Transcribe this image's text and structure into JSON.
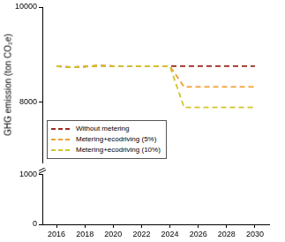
{
  "chart_data": [
    {
      "type": "line",
      "y_label": "GHG emission (ton CO₂e)",
      "x": [
        2016,
        2017,
        2018,
        2019,
        2020,
        2021,
        2022,
        2023,
        2024,
        2025,
        2026,
        2027,
        2028,
        2029,
        2030
      ],
      "xlim": [
        2015,
        2031
      ],
      "ylim": [
        6700,
        10000
      ],
      "yticks": [
        8000,
        10000
      ],
      "tick_labels": "y",
      "grid": false,
      "legend": "lower left",
      "series": [
        {
          "name": "Without metering",
          "color": "#9b2a1c",
          "line_style": "dashed",
          "values": [
            8750,
            8730,
            8740,
            8760,
            8750,
            8750,
            8750,
            8750,
            8750,
            8750,
            8750,
            8750,
            8750,
            8750,
            8750
          ]
        },
        {
          "name": "Metering+ecodriving (5%)",
          "color": "#f0a030",
          "line_style": "dashed",
          "values": [
            8750,
            8730,
            8740,
            8760,
            8750,
            8750,
            8750,
            8750,
            8750,
            8310,
            8310,
            8310,
            8310,
            8310,
            8310
          ]
        },
        {
          "name": "Metering+ecodriving (10%)",
          "color": "#d2c42c",
          "line_style": "dashed",
          "values": [
            8750,
            8730,
            8740,
            8760,
            8750,
            8750,
            8750,
            8750,
            8750,
            7875,
            7875,
            7875,
            7875,
            7875,
            7875
          ]
        }
      ]
    },
    {
      "type": "line",
      "xlim": [
        2015,
        2031
      ],
      "xticks": [
        2016,
        2018,
        2020,
        2022,
        2024,
        2026,
        2028,
        2030
      ],
      "ylim": [
        0,
        1000
      ],
      "yticks": [
        0,
        1000
      ],
      "grid": false,
      "series": []
    }
  ]
}
